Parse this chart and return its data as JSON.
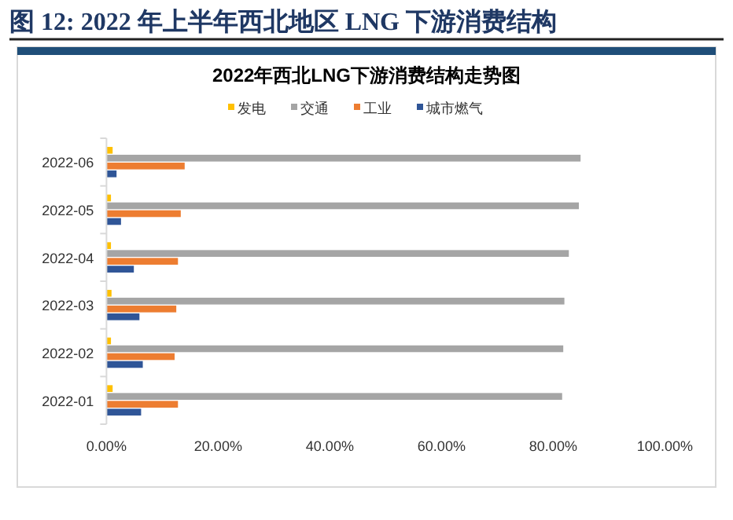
{
  "chart_data": {
    "type": "bar",
    "orientation": "horizontal",
    "title": "图 12:   2022 年上半年西北地区 LNG 下游消费结构",
    "subtitle": "2022年西北LNG下游消费结构走势图",
    "categories": [
      "2022-06",
      "2022-05",
      "2022-04",
      "2022-03",
      "2022-02",
      "2022-01"
    ],
    "series": [
      {
        "name": "发电",
        "color": "#ffc000",
        "values": [
          1.1,
          0.8,
          0.8,
          0.9,
          0.8,
          1.1
        ]
      },
      {
        "name": "交通",
        "color": "#a5a5a5",
        "values": [
          84.9,
          84.6,
          82.8,
          82.0,
          81.8,
          81.6
        ]
      },
      {
        "name": "工业",
        "color": "#ed7d31",
        "values": [
          14.0,
          13.3,
          12.8,
          12.5,
          12.2,
          12.8
        ]
      },
      {
        "name": "城市燃气",
        "color": "#2f5597",
        "values": [
          1.8,
          2.6,
          4.9,
          5.9,
          6.5,
          6.2
        ]
      }
    ],
    "xlim": [
      0,
      100
    ],
    "xticks": [
      {
        "value": 0,
        "label": "0.00%"
      },
      {
        "value": 20,
        "label": "20.00%"
      },
      {
        "value": 40,
        "label": "40.00%"
      },
      {
        "value": 60,
        "label": "60.00%"
      },
      {
        "value": 80,
        "label": "80.00%"
      },
      {
        "value": 100,
        "label": "100.00%"
      }
    ],
    "grid": false,
    "legend": "top"
  }
}
